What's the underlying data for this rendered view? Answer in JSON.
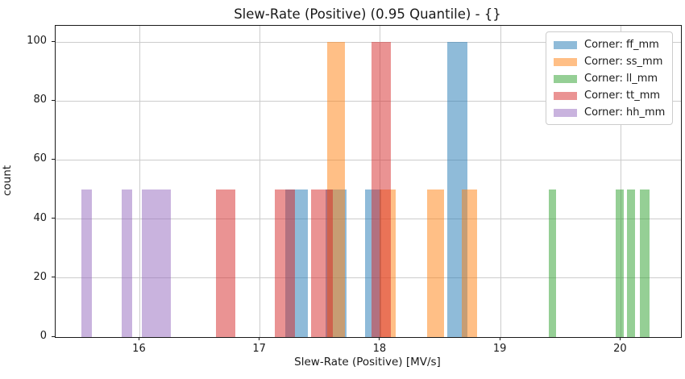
{
  "chart_data": {
    "type": "bar",
    "variant": "histogram",
    "title": "Slew-Rate (Positive) (0.95 Quantile) - {}",
    "xlabel": "Slew-Rate (Positive) [MV/s]",
    "ylabel": "count",
    "xlim": [
      15.3,
      20.5
    ],
    "ylim": [
      0,
      105.5
    ],
    "xticks": [
      16,
      17,
      18,
      19,
      20
    ],
    "yticks": [
      0,
      20,
      40,
      60,
      80,
      100
    ],
    "grid": true,
    "grid_color": "#cccccc",
    "legend_position": "upper right",
    "bar_alpha": 0.5,
    "series": [
      {
        "name": "Corner: ff_mm",
        "color": "#1f77b4",
        "bars": [
          {
            "x0": 17.21,
            "x1": 17.397,
            "count": 50
          },
          {
            "x0": 17.545,
            "x1": 17.716,
            "count": 50
          },
          {
            "x0": 17.873,
            "x1": 18.007,
            "count": 50
          },
          {
            "x0": 18.557,
            "x1": 18.724,
            "count": 100
          }
        ]
      },
      {
        "name": "Corner: ss_mm",
        "color": "#ff7f0e",
        "bars": [
          {
            "x0": 17.558,
            "x1": 17.706,
            "count": 100
          },
          {
            "x0": 17.994,
            "x1": 18.128,
            "count": 50
          },
          {
            "x0": 18.389,
            "x1": 18.53,
            "count": 50
          },
          {
            "x0": 18.677,
            "x1": 18.805,
            "count": 50
          }
        ]
      },
      {
        "name": "Corner: ll_mm",
        "color": "#2ca02c",
        "bars": [
          {
            "x0": 19.401,
            "x1": 19.461,
            "count": 50
          },
          {
            "x0": 19.957,
            "x1": 20.024,
            "count": 50
          },
          {
            "x0": 20.051,
            "x1": 20.118,
            "count": 50
          },
          {
            "x0": 20.158,
            "x1": 20.238,
            "count": 50
          }
        ]
      },
      {
        "name": "Corner: tt_mm",
        "color": "#d62728",
        "bars": [
          {
            "x0": 16.633,
            "x1": 16.794,
            "count": 50
          },
          {
            "x0": 17.123,
            "x1": 17.29,
            "count": 50
          },
          {
            "x0": 17.424,
            "x1": 17.602,
            "count": 50
          },
          {
            "x0": 17.927,
            "x1": 18.087,
            "count": 100
          }
        ]
      },
      {
        "name": "Corner: hh_mm",
        "color": "#9467bd",
        "bars": [
          {
            "x0": 15.514,
            "x1": 15.602,
            "count": 50
          },
          {
            "x0": 15.849,
            "x1": 15.937,
            "count": 50
          },
          {
            "x0": 16.017,
            "x1": 16.258,
            "count": 50
          }
        ]
      }
    ]
  }
}
